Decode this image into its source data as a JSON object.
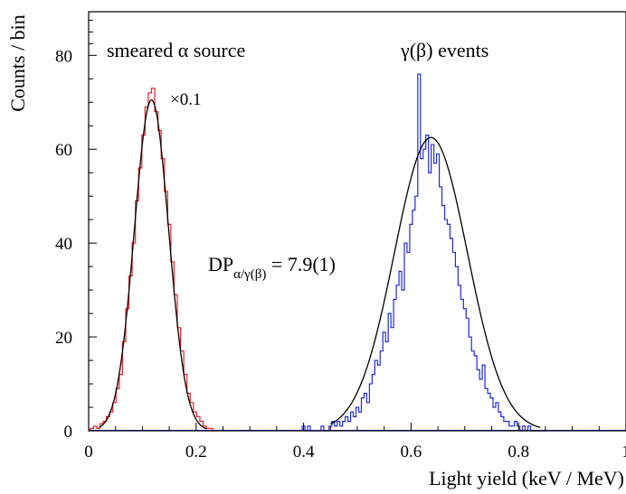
{
  "chart_data": {
    "type": "line",
    "xlabel": "Light yield (keV / MeV)",
    "ylabel": "Counts / bin",
    "xlim": [
      0,
      1
    ],
    "ylim": [
      0,
      90
    ],
    "x_ticks": [
      {
        "v": 0,
        "label": "0"
      },
      {
        "v": 0.2,
        "label": "0.2"
      },
      {
        "v": 0.4,
        "label": "0.4"
      },
      {
        "v": 0.6,
        "label": "0.6"
      },
      {
        "v": 0.8,
        "label": "0.8"
      },
      {
        "v": 1,
        "label": "1"
      }
    ],
    "y_ticks": [
      {
        "v": 0,
        "label": "0"
      },
      {
        "v": 20,
        "label": "20"
      },
      {
        "v": 40,
        "label": "40"
      },
      {
        "v": 60,
        "label": "60"
      },
      {
        "v": 80,
        "label": "80"
      }
    ],
    "annotations": {
      "alpha_label": "smeared α source",
      "gamma_label": "γ(β) events",
      "scale_label": "×0.1",
      "dp_main": "DP",
      "dp_sub": "α/γ(β)",
      "dp_value": " = 7.9(1)"
    },
    "series": [
      {
        "name": "smeared α source",
        "kind": "histogram",
        "color": "#e8202a",
        "x": [
          0.006,
          0.012,
          0.018,
          0.024,
          0.03,
          0.036,
          0.042,
          0.048,
          0.054,
          0.06,
          0.066,
          0.072,
          0.078,
          0.084,
          0.09,
          0.096,
          0.102,
          0.108,
          0.114,
          0.12,
          0.126,
          0.132,
          0.138,
          0.144,
          0.15,
          0.156,
          0.162,
          0.168,
          0.174,
          0.18,
          0.186,
          0.192,
          0.198,
          0.204,
          0.21,
          0.216,
          0.222,
          0.228,
          0.234
        ],
        "y": [
          0.5,
          1,
          0.5,
          1.5,
          2,
          3,
          4,
          6,
          9,
          12,
          19,
          26,
          33,
          40,
          49,
          56,
          63,
          69,
          72,
          73,
          68,
          64,
          58,
          51,
          44,
          36,
          29,
          22,
          17,
          12,
          8,
          6,
          4,
          3,
          2,
          1,
          0.5,
          0.5,
          0
        ]
      },
      {
        "name": "γ(β) events",
        "kind": "histogram",
        "color": "#1f2ad8",
        "x": [
          0.4,
          0.405,
          0.41,
          0.415,
          0.42,
          0.425,
          0.43,
          0.435,
          0.44,
          0.445,
          0.45,
          0.455,
          0.46,
          0.465,
          0.47,
          0.475,
          0.48,
          0.485,
          0.49,
          0.495,
          0.5,
          0.505,
          0.51,
          0.515,
          0.52,
          0.525,
          0.53,
          0.535,
          0.54,
          0.545,
          0.55,
          0.555,
          0.56,
          0.565,
          0.57,
          0.575,
          0.58,
          0.585,
          0.59,
          0.595,
          0.6,
          0.605,
          0.61,
          0.615,
          0.62,
          0.625,
          0.63,
          0.635,
          0.64,
          0.645,
          0.65,
          0.655,
          0.66,
          0.665,
          0.67,
          0.675,
          0.68,
          0.685,
          0.69,
          0.695,
          0.7,
          0.705,
          0.71,
          0.715,
          0.72,
          0.725,
          0.73,
          0.735,
          0.74,
          0.745,
          0.75,
          0.755,
          0.76,
          0.765,
          0.77,
          0.775,
          0.78,
          0.785,
          0.79,
          0.795,
          0.8,
          0.805,
          0.81,
          0.815,
          0.82,
          0.825,
          0.83,
          0.835,
          0.84,
          0.845,
          0.85
        ],
        "y": [
          1,
          0,
          1,
          0,
          0,
          0,
          0,
          1,
          0,
          0,
          1,
          2,
          1,
          2,
          1,
          2,
          3,
          2,
          4,
          3,
          5,
          4,
          7,
          8,
          6,
          10,
          12,
          15,
          14,
          17,
          21,
          19,
          25,
          22,
          28,
          31,
          34,
          30,
          40,
          38,
          44,
          47,
          50,
          76,
          58,
          60,
          63,
          55,
          61,
          57,
          59,
          52,
          48,
          45,
          44,
          41,
          38,
          35,
          31,
          28,
          26,
          24,
          20,
          17,
          16,
          13,
          11,
          14,
          9,
          8,
          7,
          5,
          6,
          4,
          3,
          2,
          2,
          1,
          1,
          2,
          1,
          0,
          1,
          0,
          1,
          0,
          0,
          0,
          0,
          0,
          0
        ]
      },
      {
        "name": "α fit",
        "kind": "gaussian",
        "color": "#000000",
        "amplitude": 70.5,
        "mean": 0.117,
        "sigma": 0.032,
        "x_range": [
          0.02,
          0.22
        ]
      },
      {
        "name": "γ(β) fit",
        "kind": "gaussian",
        "color": "#000000",
        "amplitude": 62.5,
        "mean": 0.637,
        "sigma": 0.068,
        "x_range": [
          0.45,
          0.84
        ]
      }
    ]
  }
}
